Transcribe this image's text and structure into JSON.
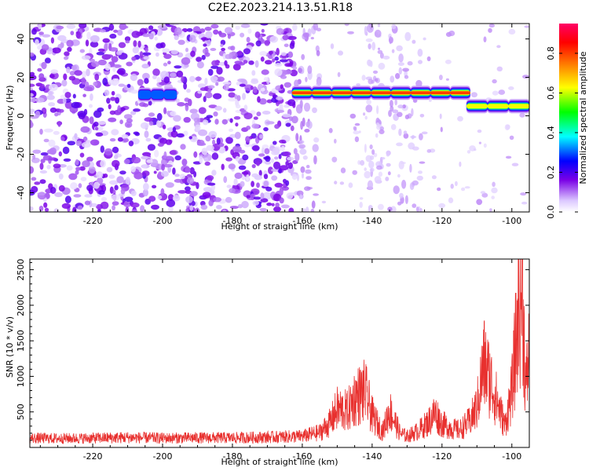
{
  "title": "C2E2.2023.214.13.51.R18",
  "chart_data": [
    {
      "type": "heatmap",
      "xlabel": "Height of straight line (km)",
      "ylabel": "Frequency (Hz)",
      "xlim": [
        -238,
        -95
      ],
      "ylim": [
        -50,
        48
      ],
      "xticks": [
        -220,
        -200,
        -180,
        -160,
        -140,
        -120,
        -100
      ],
      "yticks": [
        -40,
        -20,
        0,
        20,
        40
      ],
      "colorbar": {
        "label": "Normalized spectral amplitude",
        "range": [
          0,
          0.95
        ],
        "ticks": [
          0.0,
          0.2,
          0.4,
          0.6,
          0.8
        ],
        "colormap": [
          "#ffffff",
          "#dcc8ff",
          "#7a00e6",
          "#0000ff",
          "#00ffff",
          "#00ff00",
          "#ffff00",
          "#ff8000",
          "#ff0000",
          "#ff0066"
        ]
      },
      "noise_region": {
        "x": [
          -238,
          -162
        ],
        "y": [
          -50,
          48
        ],
        "level": 0.18
      },
      "sparse_bands": [
        {
          "x": [
            -162,
            -155
          ],
          "level": 0.08
        },
        {
          "x": [
            -142,
            -137
          ],
          "level": 0.06
        },
        {
          "x": [
            -135,
            -126
          ],
          "level": 0.07
        }
      ],
      "features": [
        {
          "x": [
            -207,
            -196
          ],
          "freq": 11,
          "peak": 0.35
        },
        {
          "x": [
            -163,
            -112
          ],
          "freq": 12,
          "peak": 0.95
        },
        {
          "x": [
            -113,
            -95
          ],
          "freq": 5,
          "peak": 0.75
        }
      ]
    },
    {
      "type": "line",
      "xlabel": "Height of straight line (km)",
      "ylabel": "SNR (10 * v/v)",
      "xlim": [
        -238,
        -95
      ],
      "ylim": [
        0,
        2650
      ],
      "xticks": [
        -220,
        -200,
        -180,
        -160,
        -140,
        -120,
        -100
      ],
      "yticks": [
        500,
        1000,
        1500,
        2000,
        2500
      ],
      "color": "#e8302e",
      "x": [
        -238,
        -230,
        -220,
        -210,
        -200,
        -190,
        -180,
        -170,
        -160,
        -155,
        -152,
        -150,
        -147,
        -145,
        -142,
        -140,
        -137,
        -135,
        -132,
        -130,
        -127,
        -124,
        -122,
        -120,
        -117,
        -115,
        -112,
        -110,
        -108,
        -106,
        -104,
        -102,
        -100,
        -98,
        -97,
        -96,
        -95
      ],
      "y": [
        150,
        145,
        150,
        160,
        150,
        155,
        155,
        165,
        180,
        240,
        400,
        620,
        580,
        800,
        900,
        520,
        250,
        600,
        230,
        180,
        260,
        400,
        560,
        380,
        300,
        280,
        420,
        650,
        1350,
        1050,
        700,
        350,
        900,
        2200,
        2550,
        900,
        1600
      ]
    }
  ]
}
